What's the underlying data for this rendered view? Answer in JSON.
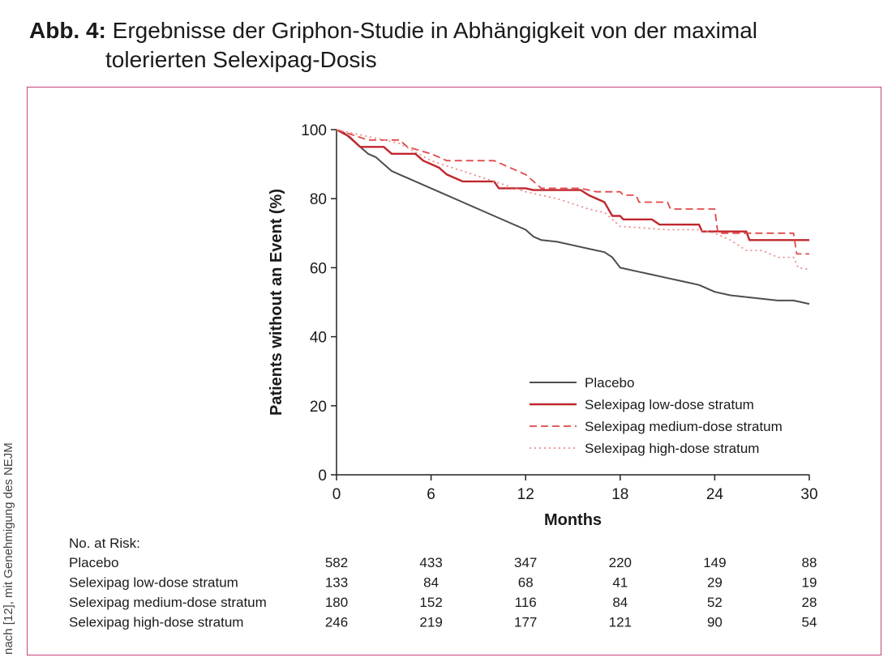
{
  "figure": {
    "label": "Abb. 4:",
    "title_line1": "Ergebnisse der Griphon-Studie in Abhängigkeit von der maximal",
    "title_line2": "tolerierten Selexipag-Dosis",
    "credit": "nach [12], mit Genehmigung des NEJM"
  },
  "colors": {
    "placebo": "#4d4d4d",
    "low": "#c0262d",
    "medium": "#e04848",
    "high": "#ee8a8a",
    "frame": "#c2437a"
  },
  "chart_data": {
    "type": "line",
    "xlabel": "Months",
    "ylabel": "Patients without an Event (%)",
    "xlim": [
      0,
      30
    ],
    "ylim": [
      0,
      100
    ],
    "xticks": [
      0,
      6,
      12,
      18,
      24,
      30
    ],
    "yticks": [
      0,
      20,
      40,
      60,
      80,
      100
    ],
    "grid": false,
    "legend_position": "lower-right",
    "series": [
      {
        "name": "Placebo",
        "style": "solid",
        "points": [
          [
            0,
            100
          ],
          [
            0.5,
            99
          ],
          [
            1,
            97
          ],
          [
            1.5,
            95
          ],
          [
            2,
            93
          ],
          [
            2.5,
            92
          ],
          [
            3,
            90
          ],
          [
            3.5,
            88
          ],
          [
            4,
            87
          ],
          [
            5,
            85
          ],
          [
            6,
            83
          ],
          [
            7,
            81
          ],
          [
            8,
            79
          ],
          [
            9,
            77
          ],
          [
            10,
            75
          ],
          [
            11,
            73
          ],
          [
            12,
            71
          ],
          [
            12.5,
            69
          ],
          [
            13,
            68
          ],
          [
            14,
            67.5
          ],
          [
            15,
            66.5
          ],
          [
            16,
            65.5
          ],
          [
            17,
            64.5
          ],
          [
            17.5,
            63
          ],
          [
            18,
            60
          ],
          [
            19,
            59
          ],
          [
            20,
            58
          ],
          [
            21,
            57
          ],
          [
            22,
            56
          ],
          [
            23,
            55
          ],
          [
            24,
            53
          ],
          [
            25,
            52
          ],
          [
            26,
            51.5
          ],
          [
            27,
            51
          ],
          [
            28,
            50.5
          ],
          [
            29,
            50.5
          ],
          [
            30,
            49.5
          ]
        ]
      },
      {
        "name": "Selexipag low-dose stratum",
        "style": "solid",
        "points": [
          [
            0,
            100
          ],
          [
            0.8,
            98
          ],
          [
            1.5,
            95
          ],
          [
            3,
            95
          ],
          [
            3.5,
            93
          ],
          [
            5,
            93
          ],
          [
            5.5,
            91
          ],
          [
            6.5,
            89
          ],
          [
            7,
            87
          ],
          [
            8,
            85
          ],
          [
            10,
            85
          ],
          [
            10.3,
            83
          ],
          [
            12,
            83
          ],
          [
            12.5,
            82.5
          ],
          [
            15.5,
            82.5
          ],
          [
            16,
            81
          ],
          [
            17,
            79
          ],
          [
            17.5,
            75
          ],
          [
            18,
            75
          ],
          [
            18.2,
            74
          ],
          [
            20,
            74
          ],
          [
            20.5,
            72.5
          ],
          [
            23,
            72.5
          ],
          [
            23.2,
            70.5
          ],
          [
            26,
            70.5
          ],
          [
            26.2,
            68
          ],
          [
            30,
            68
          ]
        ]
      },
      {
        "name": "Selexipag medium-dose stratum",
        "style": "dashed",
        "points": [
          [
            0,
            100
          ],
          [
            1,
            98.5
          ],
          [
            2,
            97
          ],
          [
            4,
            97
          ],
          [
            4.5,
            95
          ],
          [
            6,
            93
          ],
          [
            7,
            91
          ],
          [
            10,
            91
          ],
          [
            11,
            89
          ],
          [
            12,
            87
          ],
          [
            12.5,
            85
          ],
          [
            13,
            83
          ],
          [
            15.5,
            83
          ],
          [
            16.5,
            82
          ],
          [
            18,
            82
          ],
          [
            18.2,
            81
          ],
          [
            19,
            81
          ],
          [
            19.2,
            79
          ],
          [
            21,
            79
          ],
          [
            21.2,
            77
          ],
          [
            24,
            77
          ],
          [
            24.2,
            70
          ],
          [
            29,
            70
          ],
          [
            29.2,
            64
          ],
          [
            30,
            64
          ]
        ]
      },
      {
        "name": "Selexipag high-dose stratum",
        "style": "dotted",
        "points": [
          [
            0,
            100
          ],
          [
            1,
            99
          ],
          [
            2,
            98
          ],
          [
            4,
            96
          ],
          [
            6,
            91
          ],
          [
            8,
            88
          ],
          [
            10,
            85
          ],
          [
            12,
            82
          ],
          [
            14,
            80
          ],
          [
            16,
            77
          ],
          [
            17,
            76
          ],
          [
            18,
            72
          ],
          [
            21,
            71
          ],
          [
            23,
            71
          ],
          [
            24,
            70
          ],
          [
            25,
            68
          ],
          [
            26,
            65
          ],
          [
            27,
            65
          ],
          [
            28,
            63
          ],
          [
            29,
            63
          ],
          [
            29.3,
            60
          ],
          [
            30,
            59.5
          ]
        ]
      }
    ],
    "risk_table": {
      "title": "No. at Risk:",
      "rows": [
        {
          "label": "Placebo",
          "values": [
            582,
            433,
            347,
            220,
            149,
            88
          ]
        },
        {
          "label": "Selexipag low-dose stratum",
          "values": [
            133,
            84,
            68,
            41,
            29,
            19
          ]
        },
        {
          "label": "Selexipag medium-dose stratum",
          "values": [
            180,
            152,
            116,
            84,
            52,
            28
          ]
        },
        {
          "label": "Selexipag high-dose stratum",
          "values": [
            246,
            219,
            177,
            121,
            90,
            54
          ]
        }
      ]
    }
  }
}
